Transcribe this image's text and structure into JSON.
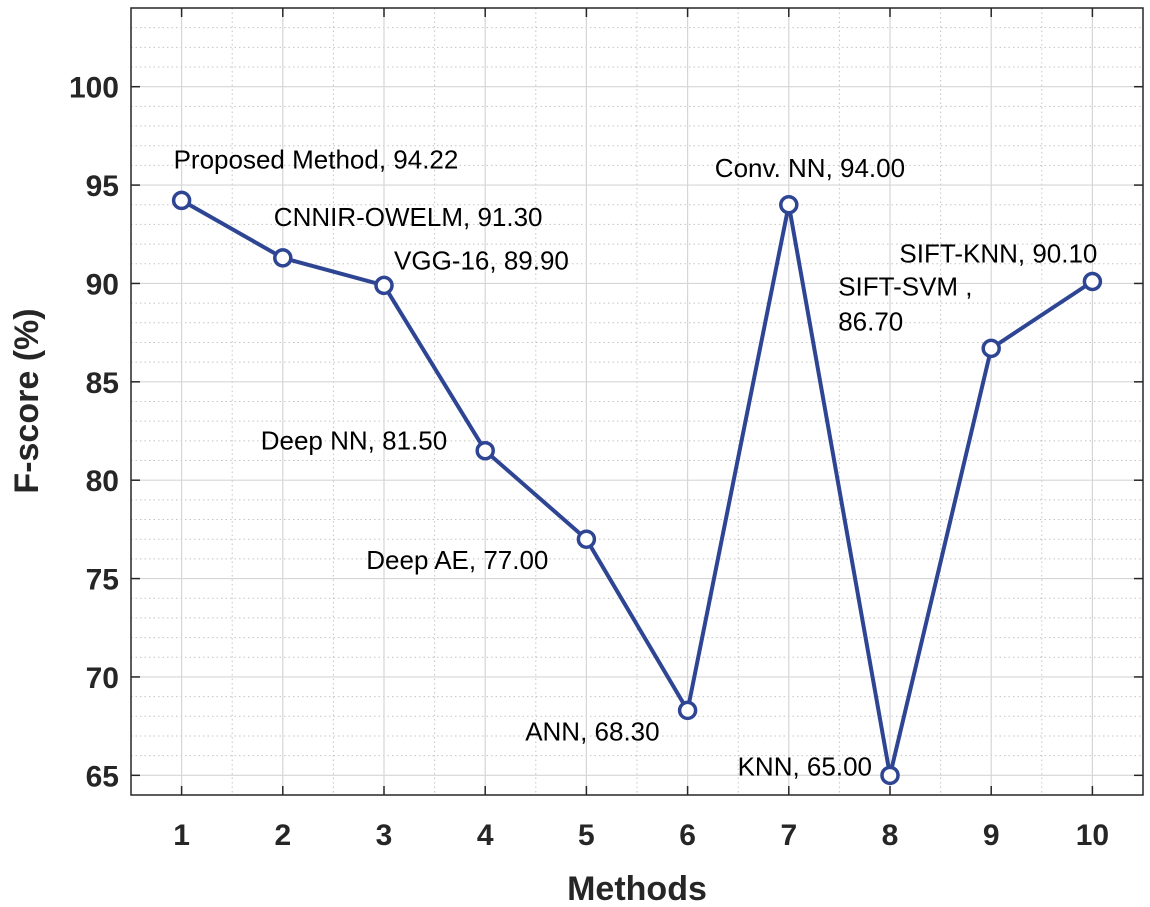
{
  "chart_data": {
    "type": "line",
    "xlabel": "Methods",
    "ylabel": "F-score (%)",
    "xlim": [
      0.5,
      10.5
    ],
    "ylim": [
      64,
      104
    ],
    "x_ticks": [
      1,
      2,
      3,
      4,
      5,
      6,
      7,
      8,
      9,
      10
    ],
    "y_ticks": [
      65,
      70,
      75,
      80,
      85,
      90,
      95,
      100
    ],
    "grid": true,
    "minor_grid": true,
    "series": [
      {
        "color": "#2E4593",
        "marker": "circle",
        "x": [
          1,
          2,
          3,
          4,
          5,
          6,
          7,
          8,
          9,
          10
        ],
        "values": [
          94.22,
          91.3,
          89.9,
          81.5,
          77.0,
          68.3,
          94.0,
          65.0,
          86.7,
          90.1
        ]
      }
    ],
    "annotations": [
      {
        "lines": [
          "Proposed Method, 94.22"
        ]
      },
      {
        "lines": [
          "CNNIR-OWELM, 91.30"
        ]
      },
      {
        "lines": [
          "VGG-16, 89.90"
        ]
      },
      {
        "lines": [
          "Deep NN, 81.50"
        ]
      },
      {
        "lines": [
          "Deep AE, 77.00"
        ]
      },
      {
        "lines": [
          "ANN, 68.30"
        ]
      },
      {
        "lines": [
          "Conv. NN, 94.00"
        ]
      },
      {
        "lines": [
          "KNN, 65.00"
        ]
      },
      {
        "lines": [
          "SIFT-SVM ,",
          "86.70"
        ]
      },
      {
        "lines": [
          "SIFT-KNN, 90.10"
        ]
      }
    ]
  }
}
